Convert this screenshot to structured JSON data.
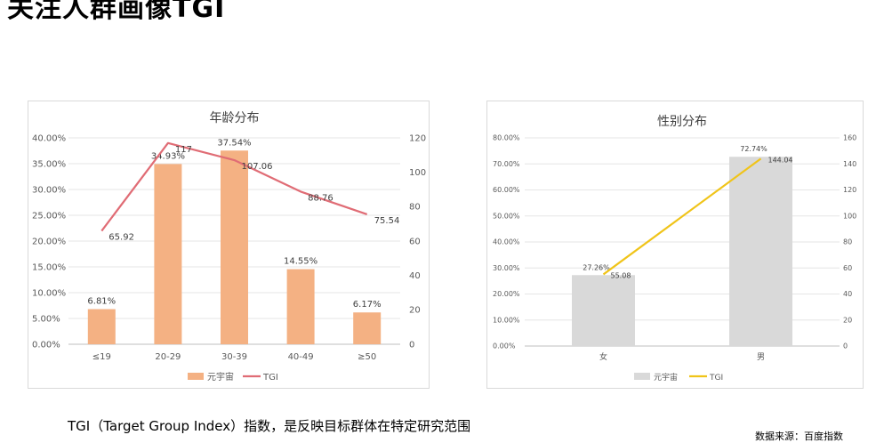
{
  "page": {
    "title": "关注人群画像TGI",
    "footer": "TGI（Target Group Index）指数，是反映目标群体在特定研究范围",
    "source": "数据来源：百度指数"
  },
  "chart_data": [
    {
      "type": "bar",
      "title": "年龄分布",
      "categories": [
        "≤19",
        "20-29",
        "30-39",
        "40-49",
        "≥50"
      ],
      "series": [
        {
          "name": "元宇宙",
          "kind": "bar",
          "axis": "left",
          "color": "#f4b183",
          "values": [
            6.81,
            34.93,
            37.54,
            14.55,
            6.17
          ],
          "labels": [
            "6.81%",
            "34.93%",
            "37.54%",
            "14.55%",
            "6.17%"
          ]
        },
        {
          "name": "TGI",
          "kind": "line",
          "axis": "right",
          "color": "#e06c75",
          "values": [
            65.92,
            117,
            107.06,
            88.76,
            75.54
          ],
          "labels": [
            "65.92",
            "117",
            "107.06",
            "88.76",
            "75.54"
          ]
        }
      ],
      "y_left": {
        "min": 0,
        "max": 40,
        "step": 5,
        "ticks": [
          "0.00%",
          "5.00%",
          "10.00%",
          "15.00%",
          "20.00%",
          "25.00%",
          "30.00%",
          "35.00%",
          "40.00%"
        ]
      },
      "y_right": {
        "min": 0,
        "max": 120,
        "step": 20,
        "ticks": [
          "0",
          "20",
          "40",
          "60",
          "80",
          "100",
          "120"
        ]
      },
      "grid": true,
      "legend": "bottom"
    },
    {
      "type": "bar",
      "title": "性别分布",
      "categories": [
        "女",
        "男"
      ],
      "series": [
        {
          "name": "元宇宙",
          "kind": "bar",
          "axis": "left",
          "color": "#d9d9d9",
          "values": [
            27.26,
            72.74
          ],
          "labels": [
            "27.26%",
            "72.74%"
          ]
        },
        {
          "name": "TGI",
          "kind": "line",
          "axis": "right",
          "color": "#f0c419",
          "values": [
            55.08,
            144.04
          ],
          "labels": [
            "55.08",
            "144.04"
          ]
        }
      ],
      "y_left": {
        "min": 0,
        "max": 80,
        "step": 10,
        "ticks": [
          "0.00%",
          "10.00%",
          "20.00%",
          "30.00%",
          "40.00%",
          "50.00%",
          "60.00%",
          "70.00%",
          "80.00%"
        ]
      },
      "y_right": {
        "min": 0,
        "max": 160,
        "step": 20,
        "ticks": [
          "0",
          "20",
          "40",
          "60",
          "80",
          "100",
          "120",
          "140",
          "160"
        ]
      },
      "grid": true,
      "legend": "bottom"
    }
  ]
}
